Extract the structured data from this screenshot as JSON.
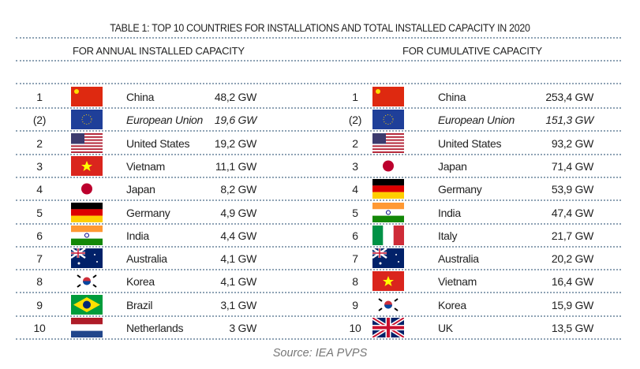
{
  "title": "TABLE 1: TOP 10 COUNTRIES FOR INSTALLATIONS AND TOTAL INSTALLED CAPACITY IN 2020",
  "annual_header": "FOR ANNUAL INSTALLED CAPACITY",
  "cumulative_header": "FOR CUMULATIVE CAPACITY",
  "annual": [
    {
      "rank": "1",
      "country": "China",
      "value": "48,2 GW",
      "flag": "cn"
    },
    {
      "rank": "(2)",
      "country": "European Union",
      "value": "19,6 GW",
      "flag": "eu",
      "italic": true
    },
    {
      "rank": "2",
      "country": "United States",
      "value": "19,2 GW",
      "flag": "us"
    },
    {
      "rank": "3",
      "country": "Vietnam",
      "value": "11,1 GW",
      "flag": "vn"
    },
    {
      "rank": "4",
      "country": "Japan",
      "value": "8,2 GW",
      "flag": "jp"
    },
    {
      "rank": "5",
      "country": "Germany",
      "value": "4,9 GW",
      "flag": "de"
    },
    {
      "rank": "6",
      "country": "India",
      "value": "4,4 GW",
      "flag": "in"
    },
    {
      "rank": "7",
      "country": "Australia",
      "value": "4,1 GW",
      "flag": "au"
    },
    {
      "rank": "8",
      "country": "Korea",
      "value": "4,1 GW",
      "flag": "kr"
    },
    {
      "rank": "9",
      "country": "Brazil",
      "value": "3,1 GW",
      "flag": "br"
    },
    {
      "rank": "10",
      "country": "Netherlands",
      "value": "3 GW",
      "flag": "nl"
    }
  ],
  "cumulative": [
    {
      "rank": "1",
      "country": "China",
      "value": "253,4 GW",
      "flag": "cn"
    },
    {
      "rank": "(2)",
      "country": "European Union",
      "value": "151,3 GW",
      "flag": "eu",
      "italic": true
    },
    {
      "rank": "2",
      "country": "United States",
      "value": "93,2 GW",
      "flag": "us"
    },
    {
      "rank": "3",
      "country": "Japan",
      "value": "71,4 GW",
      "flag": "jp"
    },
    {
      "rank": "4",
      "country": "Germany",
      "value": "53,9 GW",
      "flag": "de"
    },
    {
      "rank": "5",
      "country": "India",
      "value": "47,4 GW",
      "flag": "in"
    },
    {
      "rank": "6",
      "country": "Italy",
      "value": "21,7 GW",
      "flag": "it"
    },
    {
      "rank": "7",
      "country": "Australia",
      "value": "20,2 GW",
      "flag": "au"
    },
    {
      "rank": "8",
      "country": "Vietnam",
      "value": "16,4 GW",
      "flag": "vn"
    },
    {
      "rank": "9",
      "country": "Korea",
      "value": "15,9 GW",
      "flag": "kr"
    },
    {
      "rank": "10",
      "country": "UK",
      "value": "13,5 GW",
      "flag": "uk"
    }
  ],
  "source": "Source: IEA PVPS"
}
